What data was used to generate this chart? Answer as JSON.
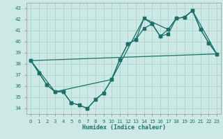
{
  "xlabel": "Humidex (Indice chaleur)",
  "bg_color": "#cce9e5",
  "grid_color": "#aad4cf",
  "line_color": "#1a706a",
  "xlim": [
    -0.5,
    23.5
  ],
  "ylim": [
    33.5,
    43.5
  ],
  "yticks": [
    34,
    35,
    36,
    37,
    38,
    39,
    40,
    41,
    42,
    43
  ],
  "xticks": [
    0,
    1,
    2,
    3,
    4,
    5,
    6,
    7,
    8,
    9,
    10,
    11,
    12,
    13,
    14,
    15,
    16,
    17,
    18,
    19,
    20,
    21,
    22,
    23
  ],
  "curve1_x": [
    0,
    1,
    2,
    3,
    4,
    5,
    6,
    7,
    8,
    9,
    10,
    11,
    12,
    13,
    14,
    15,
    16,
    17,
    18,
    19,
    20,
    21,
    22,
    23
  ],
  "curve1_y": [
    38.3,
    37.2,
    36.1,
    35.5,
    35.5,
    34.5,
    34.3,
    34.0,
    34.8,
    35.4,
    36.6,
    38.4,
    39.8,
    40.2,
    41.2,
    41.6,
    40.5,
    40.7,
    42.1,
    42.2,
    42.8,
    41.1,
    39.9,
    38.9
  ],
  "curve2_x": [
    0,
    1,
    2,
    3,
    4,
    5,
    6,
    7,
    8,
    9,
    10,
    11,
    12,
    13,
    14,
    15,
    16,
    17,
    18,
    19,
    20,
    21,
    22,
    23
  ],
  "curve2_y": [
    38.3,
    37.2,
    36.1,
    35.5,
    35.5,
    34.5,
    34.3,
    34.0,
    34.8,
    35.4,
    36.6,
    38.4,
    39.8,
    40.2,
    42.1,
    41.6,
    40.5,
    41.1,
    42.1,
    42.2,
    42.8,
    41.1,
    39.9,
    38.9
  ],
  "curve3_x": [
    0,
    3,
    10,
    14,
    17,
    18,
    19,
    20,
    23
  ],
  "curve3_y": [
    38.3,
    35.5,
    36.6,
    42.1,
    41.1,
    42.1,
    42.2,
    42.8,
    38.9
  ],
  "line4_x": [
    0,
    23
  ],
  "line4_y": [
    38.3,
    38.9
  ]
}
